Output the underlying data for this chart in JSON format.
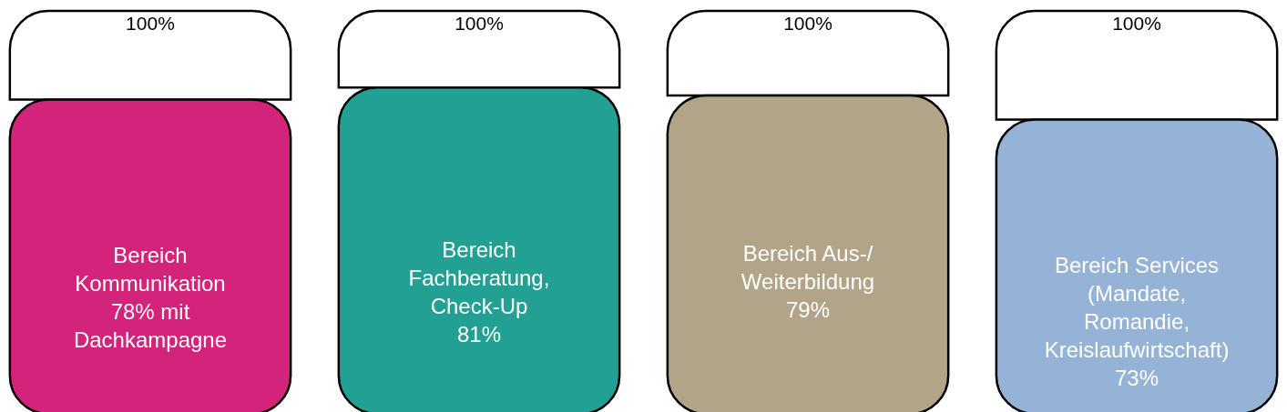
{
  "chart_data": {
    "type": "bar",
    "stacked": true,
    "categories": [
      "Bereich Kommunikation",
      "Bereich Fachberatung, Check-Up",
      "Bereich Aus-/ Weiterbildung",
      "Bereich Services (Mandate, Romandie, Kreislaufwirtschaft)"
    ],
    "ylim": [
      0,
      100
    ],
    "totals": [
      "100%",
      "100%",
      "100%",
      "100%"
    ],
    "series": [
      {
        "colors": [
          "#d4237a",
          "#22a094",
          "#b2a489",
          "#95b3d7"
        ],
        "values": [
          78,
          81,
          79,
          73
        ],
        "value_labels": [
          "78% mit Dachkampagne",
          "81%",
          "79%",
          "73%"
        ]
      },
      {
        "color": "#ffffff",
        "values": [
          22,
          19,
          21,
          27
        ]
      }
    ]
  }
}
